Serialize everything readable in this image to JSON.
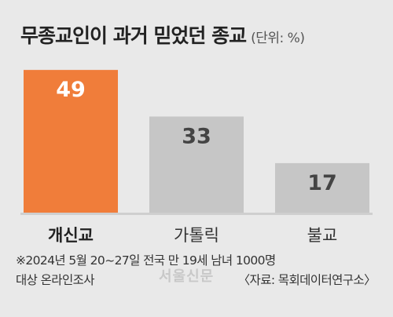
{
  "title": "무종교인이 과거 믿었던 종교",
  "unit": "(단위: %)",
  "chart_data": {
    "type": "bar",
    "categories": [
      "개신교",
      "가톨릭",
      "불교"
    ],
    "values": [
      49,
      33,
      17
    ],
    "ylim": [
      0,
      52
    ],
    "xlabel": "",
    "ylabel": "",
    "grid": false,
    "colors": [
      "#f07d3a",
      "#c6c6c6",
      "#c6c6c6"
    ],
    "highlight_index": 0
  },
  "note_line1": "※2024년 5월 20~27일 전국 만 19세 남녀 1000명",
  "note_line2": "대상 온라인조사",
  "source": "〈자료: 목회데이터연구소〉",
  "watermark": "서울신문",
  "colors": {
    "background": "#e9e9e9",
    "highlight": "#f07d3a",
    "bar": "#c6c6c6",
    "baseline": "#cfcfcf"
  }
}
